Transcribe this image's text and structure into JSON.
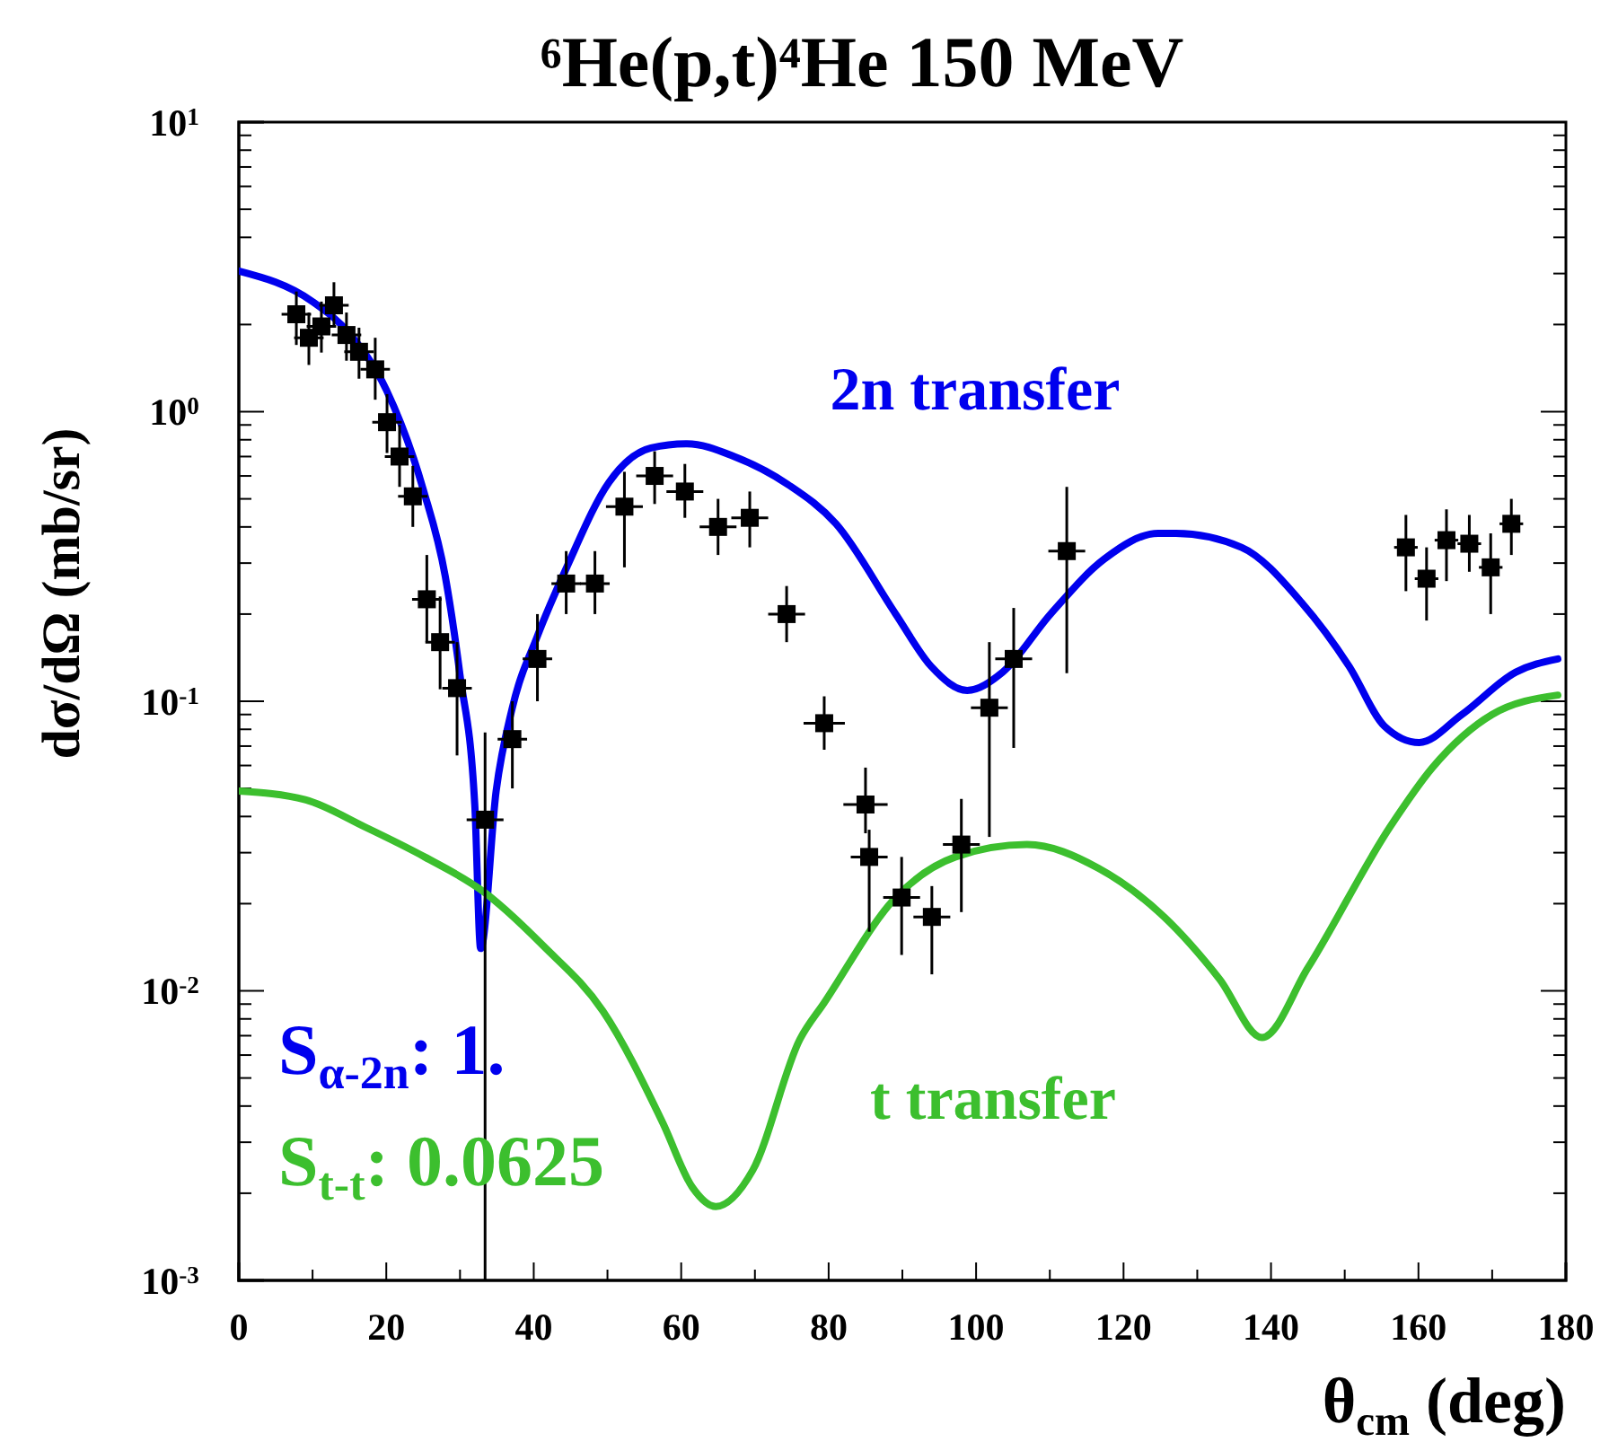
{
  "chart_data": {
    "type": "scatter",
    "title": "⁶He(p,t)⁴He   150 MeV",
    "xlabel": "θ$_{cm}$ (deg)",
    "ylabel": "dσ/dΩ  (mb/sr)",
    "log": true,
    "grid": false,
    "legend": false,
    "xlim": [
      0,
      180
    ],
    "xticks": [
      0,
      20,
      40,
      60,
      80,
      100,
      120,
      140,
      160,
      180
    ],
    "ylim": [
      0.001,
      10
    ],
    "yticks": [
      {
        "value": 0.001,
        "label": "10$^{-3}$"
      },
      {
        "value": 0.01,
        "label": "10$^{-2}$"
      },
      {
        "value": 0.1,
        "label": "10$^{-1}$"
      },
      {
        "value": 1,
        "label": "10$^{0}$"
      },
      {
        "value": 10,
        "label": "10$^{1}$"
      }
    ],
    "annotations": [
      "S$_{α-2n}$: 1.",
      "S$_{t-t}$: 0.0625"
    ],
    "series": [
      {
        "marker": "square",
        "color": "#000000",
        "x": [
          7.8,
          9.5,
          11.2,
          12.9,
          14.6,
          16.3,
          18.5,
          20.1,
          21.8,
          23.6,
          25.5,
          27.3,
          29.6,
          33.4,
          37.1,
          40.5,
          44.4,
          48.3,
          52.3,
          56.4,
          60.5,
          65,
          69.3,
          74.3,
          79.4,
          85,
          85.5,
          89.9,
          94,
          98,
          101.8,
          105.1,
          112.3,
          158.3,
          161.1,
          163.8,
          166.9,
          169.8,
          172.6
        ],
        "values": [
          2.17,
          1.8,
          1.97,
          2.33,
          1.84,
          1.61,
          1.4,
          0.92,
          0.7,
          0.51,
          0.225,
          0.16,
          0.111,
          0.039,
          0.074,
          0.14,
          0.255,
          0.255,
          0.47,
          0.6,
          0.53,
          0.4,
          0.43,
          0.2,
          0.084,
          0.044,
          0.029,
          0.021,
          0.018,
          0.032,
          0.095,
          0.14,
          0.33,
          0.34,
          0.265,
          0.36,
          0.35,
          0.29,
          0.41
        ],
        "errors": [
          [
            1.7,
            2.6
          ],
          [
            1.45,
            2.2
          ],
          [
            1.6,
            2.4
          ],
          [
            1.95,
            2.8
          ],
          [
            1.5,
            2.2
          ],
          [
            1.3,
            1.95
          ],
          [
            1.1,
            1.8
          ],
          [
            0.72,
            1.15
          ],
          [
            0.55,
            0.9
          ],
          [
            0.4,
            0.65
          ],
          [
            0.16,
            0.32
          ],
          [
            0.11,
            0.23
          ],
          [
            0.065,
            0.16
          ],
          [
            0.001,
            0.078
          ],
          [
            0.05,
            0.1
          ],
          [
            0.1,
            0.2
          ],
          [
            0.2,
            0.33
          ],
          [
            0.2,
            0.33
          ],
          [
            0.29,
            0.62
          ],
          [
            0.48,
            0.73
          ],
          [
            0.43,
            0.66
          ],
          [
            0.32,
            0.5
          ],
          [
            0.34,
            0.53
          ],
          [
            0.16,
            0.25
          ],
          [
            0.068,
            0.104
          ],
          [
            0.035,
            0.059
          ],
          [
            0.016,
            0.036
          ],
          [
            0.0133,
            0.029
          ],
          [
            0.0114,
            0.023
          ],
          [
            0.0187,
            0.046
          ],
          [
            0.034,
            0.16
          ],
          [
            0.069,
            0.21
          ],
          [
            0.125,
            0.55
          ],
          [
            0.24,
            0.44
          ],
          [
            0.19,
            0.34
          ],
          [
            0.26,
            0.46
          ],
          [
            0.28,
            0.44
          ],
          [
            0.2,
            0.38
          ],
          [
            0.32,
            0.5
          ]
        ],
        "xerrors": [
          2,
          2,
          2,
          2,
          2,
          2,
          2,
          2,
          2,
          2,
          2,
          2,
          2,
          2.5,
          2,
          2,
          2,
          2,
          2.5,
          2.5,
          2.5,
          2.5,
          2.5,
          2.5,
          2.8,
          3,
          2.5,
          2.5,
          2.5,
          2.5,
          2.5,
          2.5,
          2.5,
          1.6,
          1.6,
          1.6,
          1.6,
          1.6,
          1.6
        ]
      },
      {
        "type": "line",
        "name": "2n transfer",
        "color": "#0000ee",
        "x": [
          0,
          10,
          15,
          20,
          25,
          28,
          30,
          32,
          32.8,
          34.9,
          37.1,
          40.5,
          44.6,
          50.2,
          55.9,
          60.8,
          67.2,
          74.5,
          81,
          89.1,
          93.9,
          98.8,
          103.6,
          110.1,
          117.4,
          124.7,
          127.1,
          136,
          144.1,
          150.6,
          155.4,
          160.1,
          165.9,
          173.2,
          178.9
        ],
        "values": [
          3.06,
          2.4,
          1.86,
          1.19,
          0.54,
          0.27,
          0.123,
          0.044,
          0.014,
          0.049,
          0.095,
          0.168,
          0.295,
          0.57,
          0.75,
          0.775,
          0.7,
          0.56,
          0.41,
          0.2,
          0.132,
          0.109,
          0.126,
          0.2,
          0.31,
          0.38,
          0.38,
          0.34,
          0.22,
          0.132,
          0.082,
          0.072,
          0.09,
          0.126,
          0.14
        ]
      },
      {
        "type": "line",
        "name": "t transfer",
        "color": "#3cbf2e",
        "x": [
          0,
          9,
          17.1,
          25.2,
          33.3,
          41.3,
          49.4,
          57.5,
          61.5,
          64.7,
          69.7,
          76.1,
          79.4,
          89.1,
          97.2,
          106.9,
          116.6,
          125.5,
          133,
          138.8,
          145,
          156.2,
          161.9,
          170,
          178.9
        ],
        "values": [
          0.049,
          0.0457,
          0.0368,
          0.029,
          0.0219,
          0.0143,
          0.0085,
          0.0035,
          0.0021,
          0.0018,
          0.0024,
          0.0068,
          0.0091,
          0.021,
          0.029,
          0.032,
          0.0265,
          0.018,
          0.011,
          0.0069,
          0.012,
          0.037,
          0.059,
          0.09,
          0.105
        ]
      }
    ]
  }
}
